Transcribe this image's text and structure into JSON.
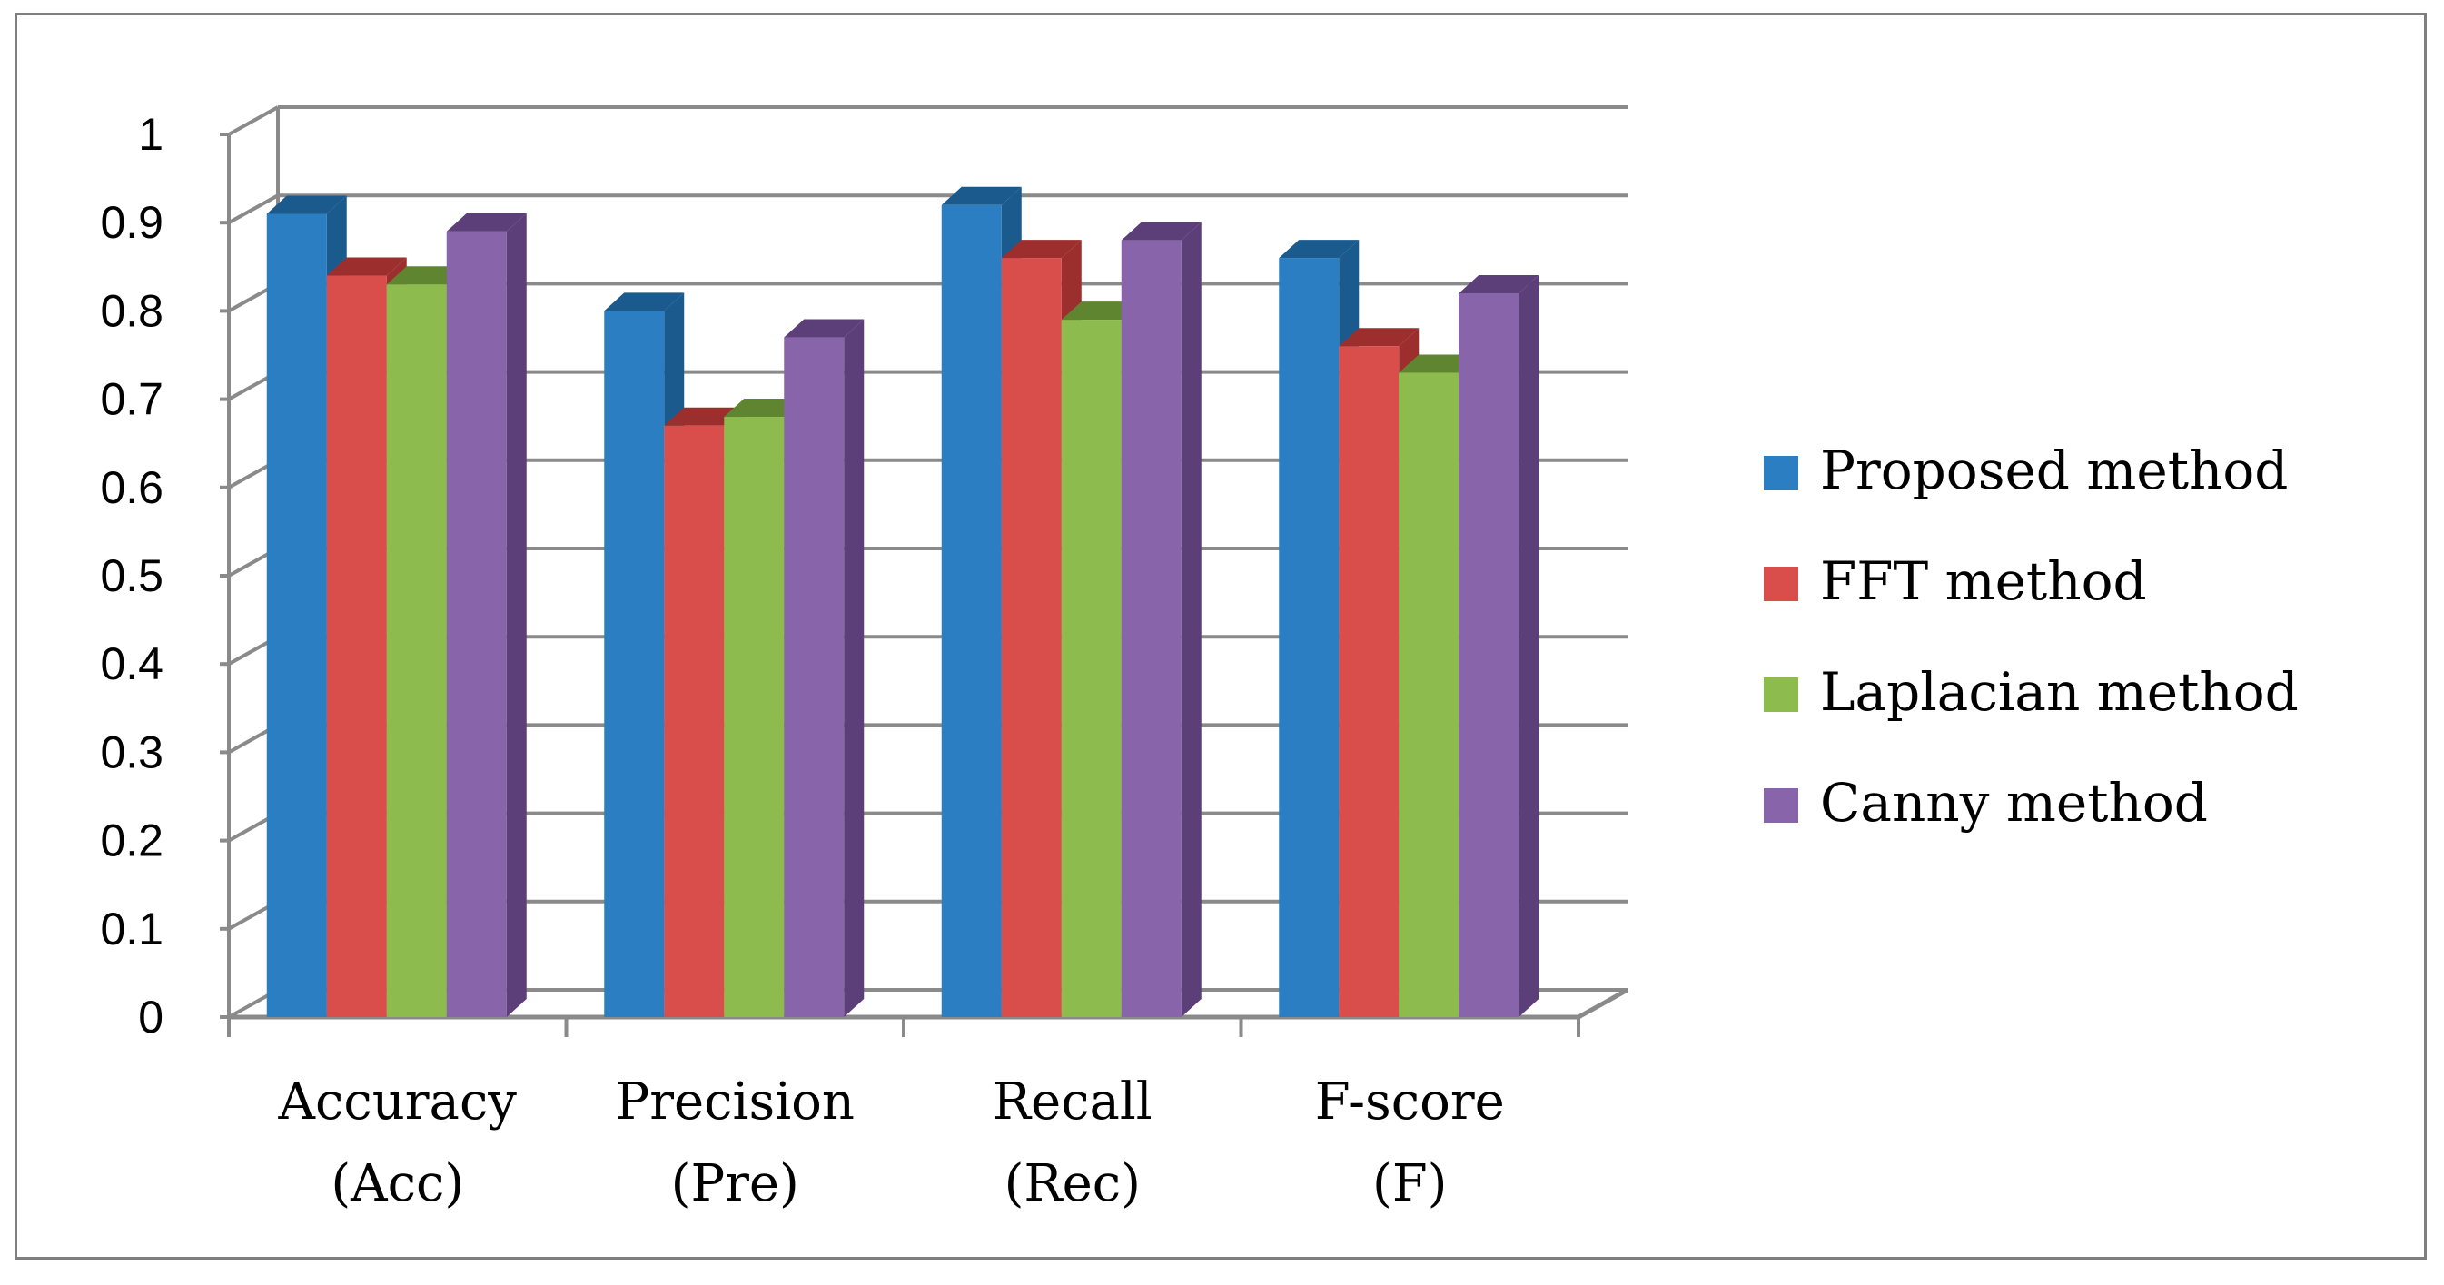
{
  "chart_data": {
    "type": "bar",
    "title": "",
    "xlabel": "",
    "ylabel": "",
    "ylim": [
      0,
      1
    ],
    "yticks": [
      "0",
      "0.1",
      "0.2",
      "0.3",
      "0.4",
      "0.5",
      "0.6",
      "0.7",
      "0.8",
      "0.9",
      "1"
    ],
    "grid": true,
    "legend_position": "right",
    "categories": [
      [
        "Accuracy",
        "(Acc)"
      ],
      [
        "Precision",
        "(Pre)"
      ],
      [
        "Recall",
        "(Rec)"
      ],
      [
        "F-score",
        "(F)"
      ]
    ],
    "series": [
      {
        "name": "Proposed method",
        "color": "#2a7ec1",
        "side": "#1b5a8c",
        "values": [
          0.91,
          0.8,
          0.92,
          0.86
        ]
      },
      {
        "name": "FFT method",
        "color": "#d94e4b",
        "side": "#9c2f2d",
        "values": [
          0.84,
          0.67,
          0.86,
          0.76
        ]
      },
      {
        "name": "Laplacian method",
        "color": "#8dbb4e",
        "side": "#5f8530",
        "values": [
          0.83,
          0.68,
          0.79,
          0.73
        ]
      },
      {
        "name": "Canny method",
        "color": "#8864aa",
        "side": "#5c3f78",
        "values": [
          0.89,
          0.77,
          0.88,
          0.82
        ]
      }
    ]
  }
}
